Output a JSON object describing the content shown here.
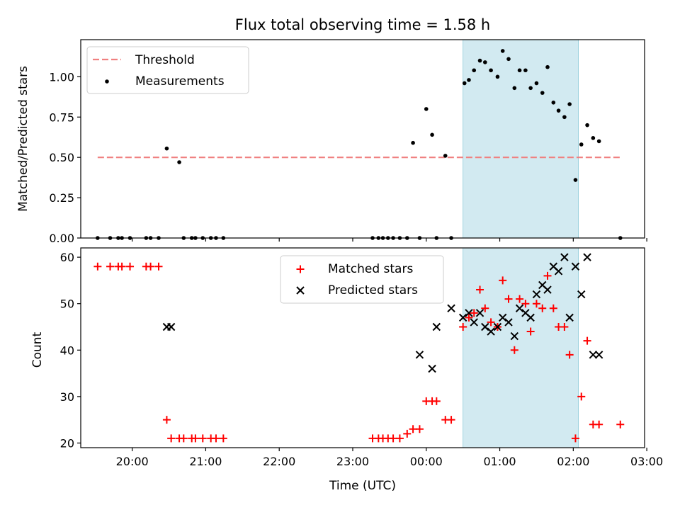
{
  "chart_data": [
    {
      "type": "scatter",
      "title": "Flux total observing time = 1.58 h",
      "xlabel": "",
      "ylabel": "Matched/Predicted stars",
      "xlim": [
        -4.7,
        2.97
      ],
      "ylim": [
        0,
        1.23
      ],
      "x_time_ticks": [
        "20:00",
        "21:00",
        "22:00",
        "23:00",
        "00:00",
        "01:00",
        "02:00",
        "03:00"
      ],
      "yticks": [
        "0.00",
        "0.25",
        "0.50",
        "0.75",
        "1.00"
      ],
      "ytick_values": [
        0,
        0.25,
        0.5,
        0.75,
        1.0
      ],
      "shaded_span": [
        0.5,
        2.07
      ],
      "threshold": {
        "name": "Threshold",
        "value": 0.5,
        "x_range": [
          -4.47,
          2.64
        ],
        "color": "#f08080"
      },
      "measurements": {
        "name": "Measurements",
        "color": "#000000",
        "x": [
          -4.47,
          -4.3,
          -4.19,
          -4.14,
          -4.03,
          -3.81,
          -3.75,
          -3.64,
          -3.53,
          -3.36,
          -3.3,
          -3.19,
          -3.14,
          -3.04,
          -2.93,
          -2.86,
          -2.76,
          -0.73,
          -0.65,
          -0.59,
          -0.52,
          -0.45,
          -0.36,
          -0.26,
          -0.18,
          -0.09,
          0.0,
          0.08,
          0.14,
          0.26,
          0.34,
          0.52,
          0.58,
          0.65,
          0.73,
          0.8,
          0.88,
          0.97,
          1.04,
          1.12,
          1.2,
          1.27,
          1.35,
          1.42,
          1.5,
          1.58,
          1.65,
          1.73,
          1.8,
          1.88,
          1.95,
          2.03,
          2.11,
          2.19,
          2.27,
          2.35,
          2.64
        ],
        "y": [
          0,
          0,
          0,
          0,
          0,
          0,
          0,
          0,
          0.555,
          0.47,
          0,
          0,
          0,
          0,
          0,
          0,
          0,
          0,
          0,
          0,
          0,
          0,
          0,
          0,
          0.59,
          0,
          0.8,
          0.64,
          0,
          0.51,
          0,
          0.96,
          0.98,
          1.04,
          1.1,
          1.09,
          1.04,
          1.0,
          1.16,
          1.11,
          0.93,
          1.04,
          1.04,
          0.93,
          0.96,
          0.9,
          1.06,
          0.84,
          0.79,
          0.75,
          0.83,
          0.36,
          0.58,
          0.7,
          0.62,
          0.6,
          0
        ]
      }
    },
    {
      "type": "scatter",
      "title": "",
      "xlabel": "Time (UTC)",
      "ylabel": "Count",
      "xlim": [
        -4.7,
        2.97
      ],
      "ylim": [
        19,
        62
      ],
      "x_time_ticks": [
        "20:00",
        "21:00",
        "22:00",
        "23:00",
        "00:00",
        "01:00",
        "02:00",
        "03:00"
      ],
      "yticks": [
        "20",
        "30",
        "40",
        "50",
        "60"
      ],
      "ytick_values": [
        20,
        30,
        40,
        50,
        60
      ],
      "shaded_span": [
        0.5,
        2.07
      ],
      "matched": {
        "name": "Matched stars",
        "color": "#ff0000",
        "x": [
          -4.47,
          -4.3,
          -4.19,
          -4.14,
          -4.03,
          -3.81,
          -3.75,
          -3.64,
          -3.53,
          -3.47,
          -3.36,
          -3.3,
          -3.19,
          -3.14,
          -3.04,
          -2.93,
          -2.86,
          -2.76,
          -0.73,
          -0.65,
          -0.59,
          -0.52,
          -0.45,
          -0.36,
          -0.26,
          -0.18,
          -0.09,
          0.0,
          0.08,
          0.14,
          0.26,
          0.34,
          0.5,
          0.58,
          0.65,
          0.73,
          0.8,
          0.88,
          0.97,
          1.04,
          1.12,
          1.2,
          1.27,
          1.35,
          1.42,
          1.5,
          1.58,
          1.65,
          1.73,
          1.8,
          1.88,
          1.95,
          2.03,
          2.11,
          2.19,
          2.27,
          2.35,
          2.64
        ],
        "y": [
          58,
          58,
          58,
          58,
          58,
          58,
          58,
          58,
          25,
          21,
          21,
          21,
          21,
          21,
          21,
          21,
          21,
          21,
          21,
          21,
          21,
          21,
          21,
          21,
          22,
          23,
          23,
          29,
          29,
          29,
          25,
          25,
          45,
          47,
          48,
          53,
          49,
          46,
          45,
          55,
          51,
          40,
          51,
          50,
          44,
          50,
          49,
          56,
          49,
          45,
          45,
          39,
          21,
          30,
          42,
          24,
          24,
          24
        ]
      },
      "predicted": {
        "name": "Predicted stars",
        "color": "#000000",
        "x": [
          -3.53,
          -3.47,
          -0.09,
          0.08,
          0.14,
          0.34,
          0.5,
          0.58,
          0.65,
          0.73,
          0.8,
          0.88,
          0.97,
          1.04,
          1.12,
          1.2,
          1.27,
          1.35,
          1.42,
          1.5,
          1.58,
          1.65,
          1.73,
          1.8,
          1.88,
          1.95,
          2.03,
          2.11,
          2.19,
          2.27,
          2.35
        ],
        "y": [
          45,
          45,
          39,
          36,
          45,
          49,
          47,
          48,
          46,
          48,
          45,
          44,
          45,
          47,
          46,
          43,
          49,
          48,
          47,
          52,
          54,
          53,
          58,
          57,
          60,
          47,
          58,
          52,
          60,
          39,
          39
        ]
      }
    }
  ]
}
